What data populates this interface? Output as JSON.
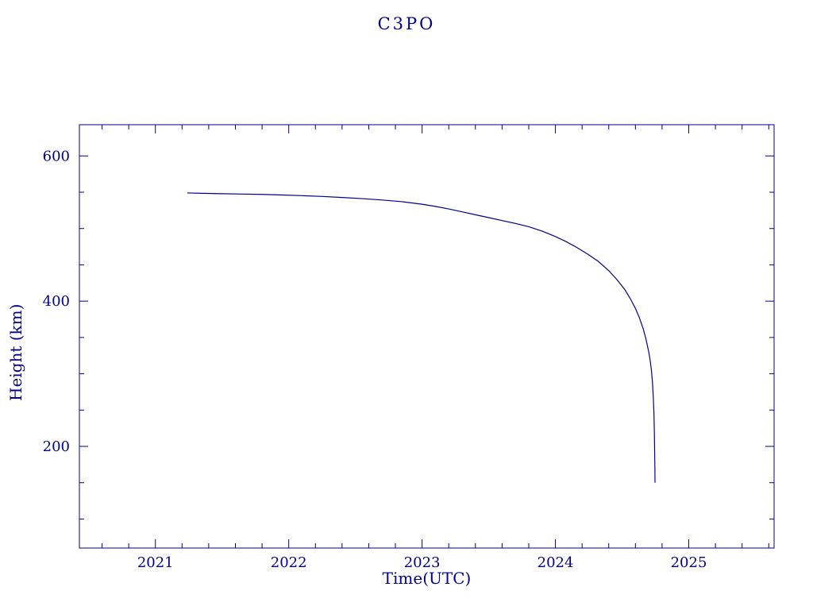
{
  "page": {
    "background": "#ffffff",
    "accent": "#00008B"
  },
  "chart_data": {
    "type": "line",
    "title": "C3PO",
    "xlabel": "Time(UTC)",
    "ylabel": "Height (km)",
    "x_range": [
      2020.43,
      2025.64
    ],
    "y_range": [
      60,
      643
    ],
    "x_ticks": [
      2021,
      2022,
      2023,
      2024,
      2025
    ],
    "x_minor_step": 0.2,
    "y_ticks": [
      200,
      400,
      600
    ],
    "y_minor_step": 50,
    "grid": false,
    "legend": "none",
    "line_color": "#00008B",
    "series": [
      {
        "name": "height",
        "points": [
          [
            2021.24,
            549
          ],
          [
            2021.35,
            548.5
          ],
          [
            2021.5,
            548
          ],
          [
            2021.65,
            547.5
          ],
          [
            2021.8,
            547
          ],
          [
            2021.95,
            546.2
          ],
          [
            2022.1,
            545.3
          ],
          [
            2022.25,
            544.2
          ],
          [
            2022.4,
            542.8
          ],
          [
            2022.55,
            541.2
          ],
          [
            2022.7,
            539.3
          ],
          [
            2022.85,
            537
          ],
          [
            2023.0,
            533.5
          ],
          [
            2023.1,
            530.5
          ],
          [
            2023.2,
            527
          ],
          [
            2023.3,
            523
          ],
          [
            2023.4,
            519
          ],
          [
            2023.5,
            515
          ],
          [
            2023.6,
            511
          ],
          [
            2023.7,
            507
          ],
          [
            2023.8,
            502.5
          ],
          [
            2023.9,
            496.5
          ],
          [
            2024.0,
            489
          ],
          [
            2024.08,
            482
          ],
          [
            2024.16,
            474
          ],
          [
            2024.24,
            465
          ],
          [
            2024.32,
            455
          ],
          [
            2024.4,
            442
          ],
          [
            2024.46,
            430
          ],
          [
            2024.52,
            416
          ],
          [
            2024.56,
            404
          ],
          [
            2024.6,
            390
          ],
          [
            2024.63,
            377
          ],
          [
            2024.66,
            361
          ],
          [
            2024.68,
            347
          ],
          [
            2024.7,
            330
          ],
          [
            2024.71,
            319
          ],
          [
            2024.72,
            305
          ],
          [
            2024.728,
            288
          ],
          [
            2024.734,
            268
          ],
          [
            2024.739,
            245
          ],
          [
            2024.742,
            220
          ],
          [
            2024.744,
            195
          ],
          [
            2024.746,
            170
          ],
          [
            2024.747,
            150
          ]
        ]
      }
    ]
  }
}
